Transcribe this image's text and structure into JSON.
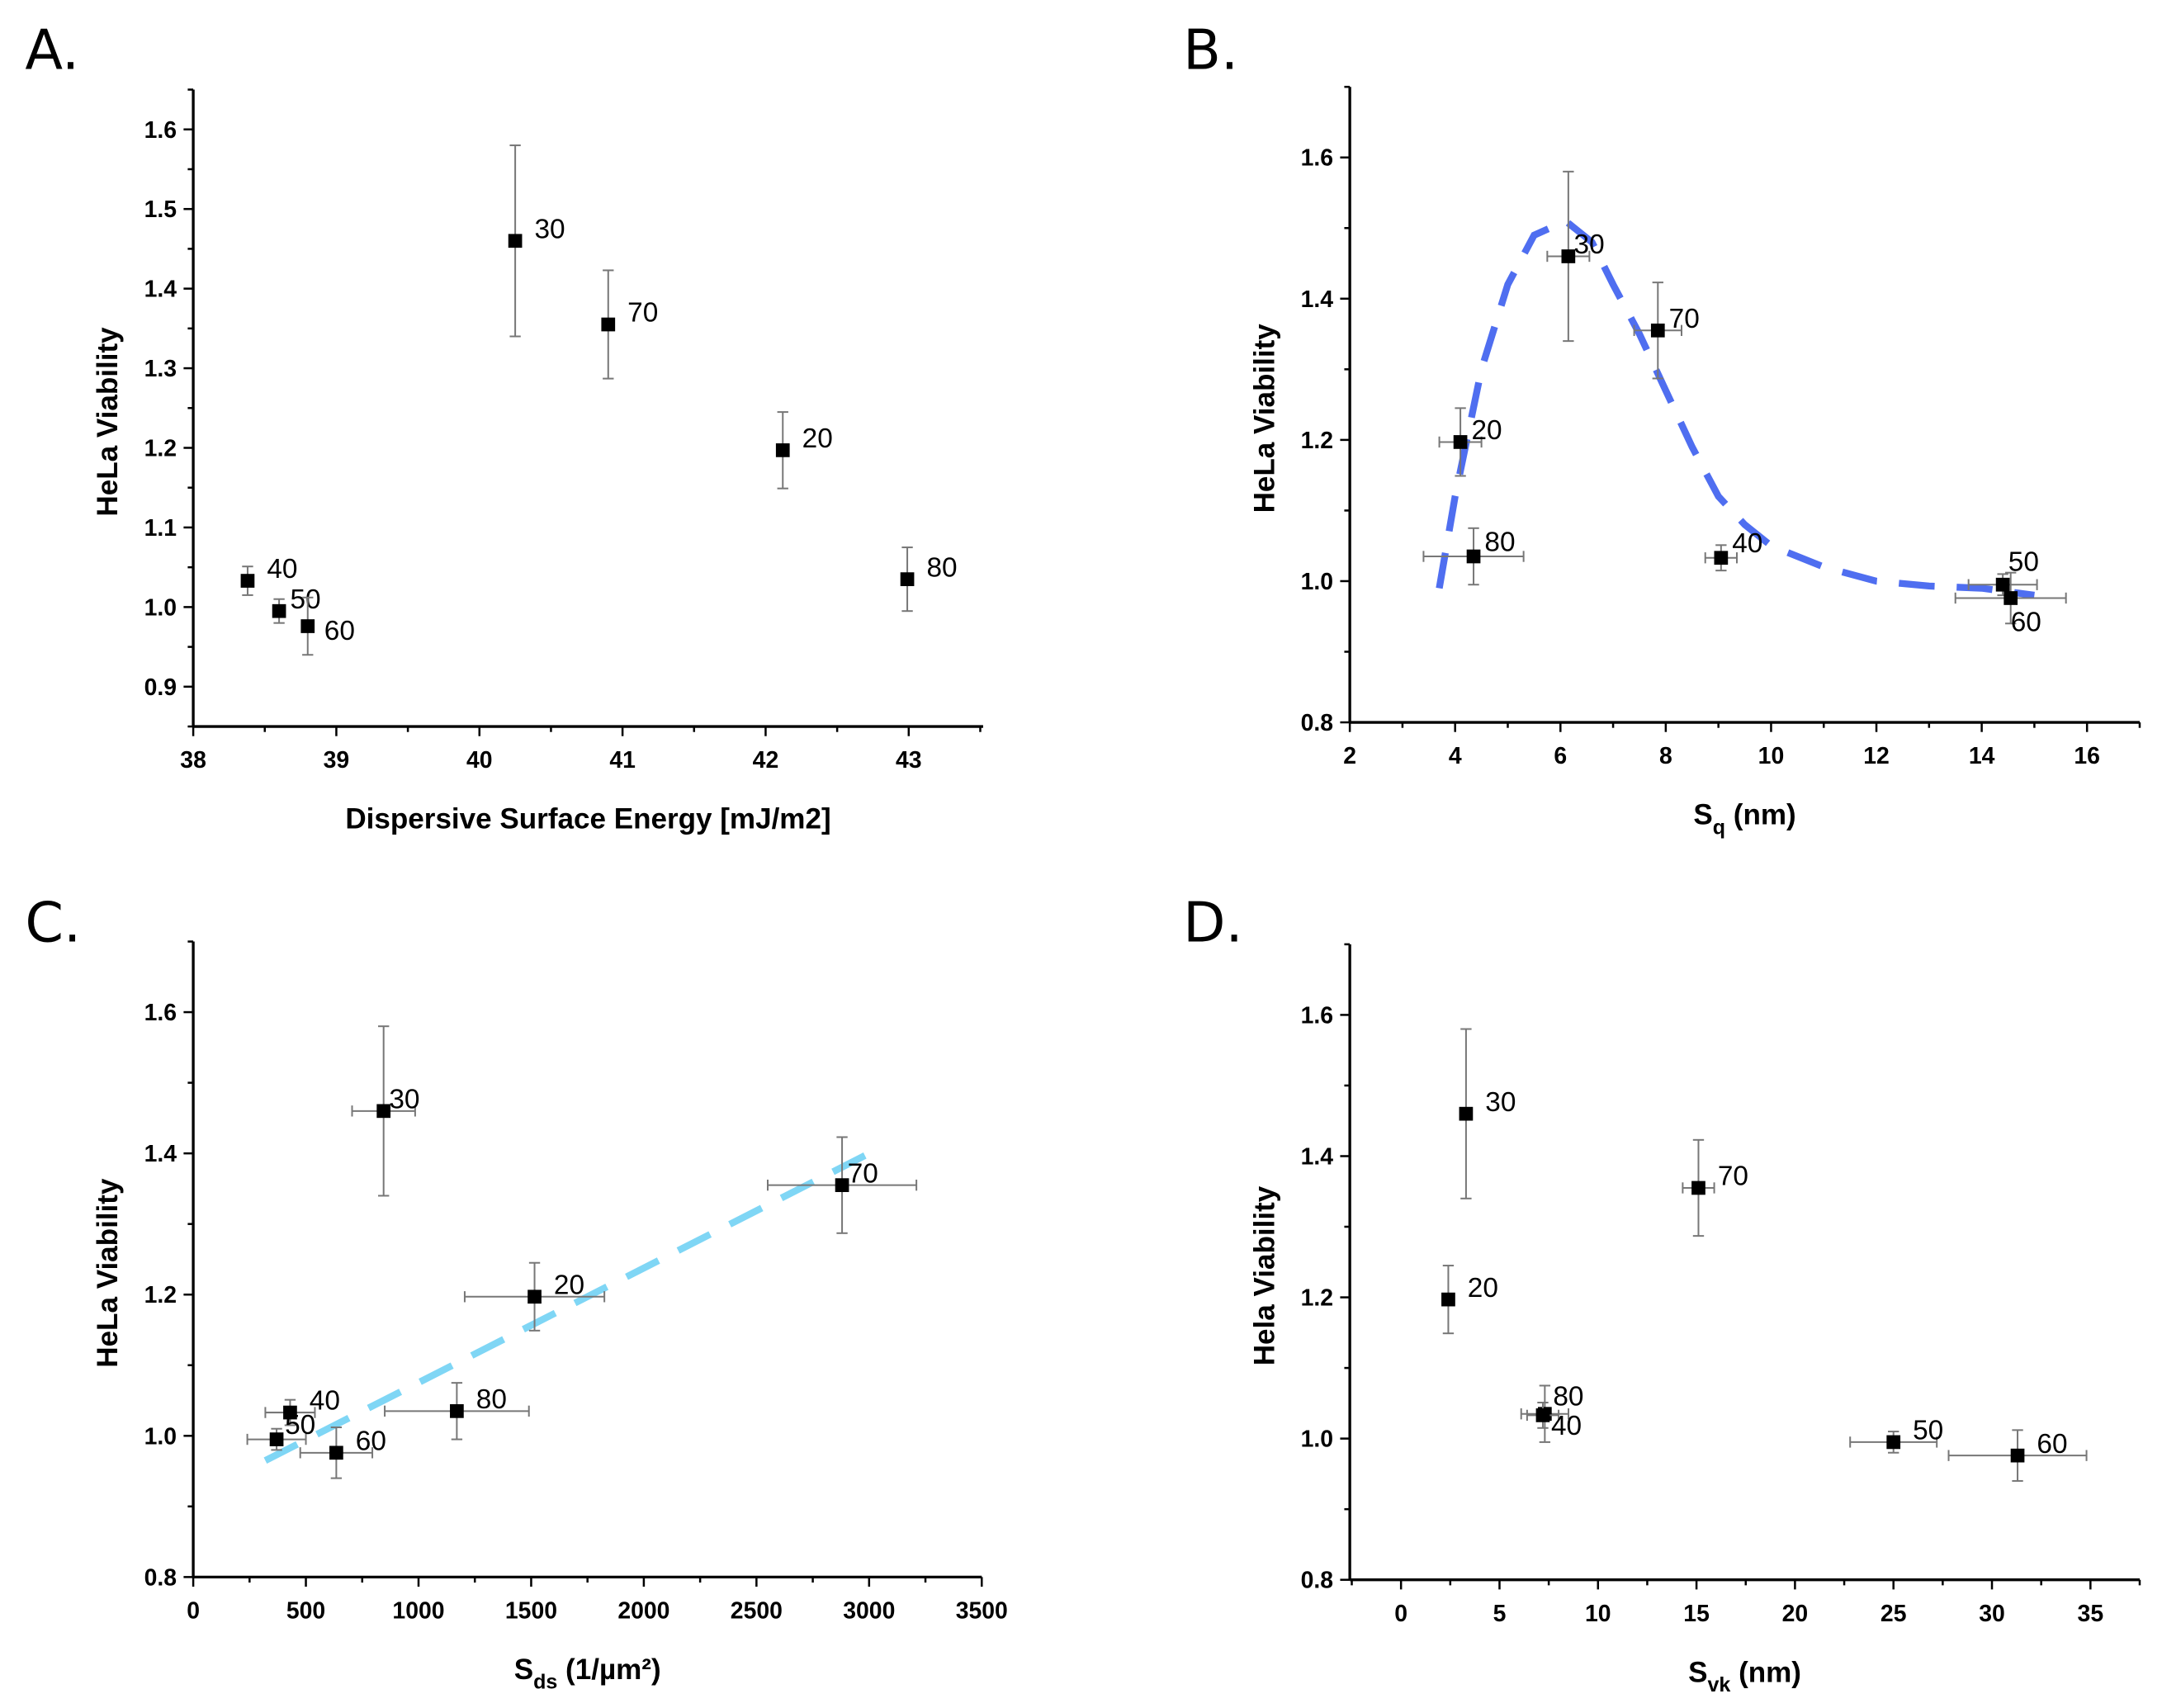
{
  "chart_data": [
    {
      "type": "scatter",
      "panel_label": "A.",
      "xlabel": "Dispersive Surface Energy [mJ/m2]",
      "xlabel_parts": [
        "Dispersive Surface Energy [mJ/m2]",
        "",
        ""
      ],
      "ylabel": "HeLa Viability",
      "xlim": [
        38,
        43.52
      ],
      "ylim": [
        0.85,
        1.65
      ],
      "xticks": [
        38,
        39,
        40,
        41,
        42,
        43
      ],
      "xminor": 0.5,
      "yticks": [
        0.9,
        1.0,
        1.1,
        1.2,
        1.3,
        1.4,
        1.5,
        1.6
      ],
      "yminor": 0.05,
      "ydecimals": 1,
      "points": [
        {
          "label": "40",
          "x": 38.38,
          "y": 1.033,
          "yerr": 0.018,
          "xerr": 0
        },
        {
          "label": "50",
          "x": 38.6,
          "y": 0.995,
          "yerr": 0.015,
          "xerr": 0
        },
        {
          "label": "60",
          "x": 38.8,
          "y": 0.976,
          "yerr": 0.036,
          "xerr": 0
        },
        {
          "label": "30",
          "x": 40.25,
          "y": 1.46,
          "yerr": 0.12,
          "xerr": 0
        },
        {
          "label": "70",
          "x": 40.9,
          "y": 1.355,
          "yerr": 0.068,
          "xerr": 0
        },
        {
          "label": "20",
          "x": 42.12,
          "y": 1.197,
          "yerr": 0.048,
          "xerr": 0
        },
        {
          "label": "80",
          "x": 42.99,
          "y": 1.035,
          "yerr": 0.04,
          "xerr": 0
        }
      ],
      "fit": null
    },
    {
      "type": "scatter",
      "panel_label": "B.",
      "xlabel": "Sq (nm)",
      "xlabel_parts": [
        "S",
        "q",
        " (nm)"
      ],
      "ylabel": "HeLa Viability",
      "xlim": [
        2,
        17
      ],
      "ylim": [
        0.8,
        1.7
      ],
      "xticks": [
        2,
        4,
        6,
        8,
        10,
        12,
        14,
        16
      ],
      "xminor": 1,
      "yticks": [
        0.8,
        1.0,
        1.2,
        1.4,
        1.6
      ],
      "yminor": 0.1,
      "ydecimals": 1,
      "points": [
        {
          "label": "20",
          "x": 4.1,
          "y": 1.197,
          "yerr": 0.048,
          "xerr": 0.4
        },
        {
          "label": "80",
          "x": 4.35,
          "y": 1.035,
          "yerr": 0.04,
          "xerr": 0.95
        },
        {
          "label": "30",
          "x": 6.15,
          "y": 1.46,
          "yerr": 0.12,
          "xerr": 0.4
        },
        {
          "label": "70",
          "x": 7.85,
          "y": 1.355,
          "yerr": 0.068,
          "xerr": 0.45
        },
        {
          "label": "40",
          "x": 9.05,
          "y": 1.033,
          "yerr": 0.018,
          "xerr": 0.3
        },
        {
          "label": "50",
          "x": 14.4,
          "y": 0.995,
          "yerr": 0.015,
          "xerr": 0.65
        },
        {
          "label": "60",
          "x": 14.55,
          "y": 0.976,
          "yerr": 0.036,
          "xerr": 1.05
        }
      ],
      "fit": {
        "color": "#4f6ef0",
        "x": [
          3.7,
          4.0,
          4.5,
          5.0,
          5.5,
          6.1,
          6.6,
          7.0,
          7.5,
          8.0,
          8.5,
          9.0,
          9.5,
          10.0,
          11.0,
          12.0,
          13.0,
          14.0,
          15.0
        ],
        "y": [
          0.99,
          1.12,
          1.3,
          1.42,
          1.49,
          1.51,
          1.48,
          1.42,
          1.35,
          1.27,
          1.19,
          1.12,
          1.08,
          1.05,
          1.02,
          1.0,
          0.993,
          0.99,
          0.98
        ]
      }
    },
    {
      "type": "scatter",
      "panel_label": "C.",
      "xlabel": "Sds (1/µm2)",
      "xlabel_parts": [
        "S",
        "ds",
        " (1/µm²)"
      ],
      "ylabel": "HeLa Viability",
      "xlim": [
        0,
        3500
      ],
      "ylim": [
        0.8,
        1.7
      ],
      "xticks": [
        0,
        500,
        1000,
        1500,
        2000,
        2500,
        3000,
        3500
      ],
      "xminor": 250,
      "yticks": [
        0.8,
        1.0,
        1.2,
        1.4,
        1.6
      ],
      "yminor": 0.1,
      "ydecimals": 1,
      "points": [
        {
          "label": "30",
          "x": 845,
          "y": 1.46,
          "yerr": 0.12,
          "xerr": 140
        },
        {
          "label": "70",
          "x": 2880,
          "y": 1.355,
          "yerr": 0.068,
          "xerr": 330
        },
        {
          "label": "20",
          "x": 1515,
          "y": 1.197,
          "yerr": 0.048,
          "xerr": 310
        },
        {
          "label": "80",
          "x": 1170,
          "y": 1.035,
          "yerr": 0.04,
          "xerr": 320
        },
        {
          "label": "40",
          "x": 430,
          "y": 1.033,
          "yerr": 0.018,
          "xerr": 110
        },
        {
          "label": "50",
          "x": 370,
          "y": 0.995,
          "yerr": 0.015,
          "xerr": 130
        },
        {
          "label": "60",
          "x": 635,
          "y": 0.976,
          "yerr": 0.036,
          "xerr": 160
        }
      ],
      "fit": {
        "color": "#7fd6f5",
        "x": [
          320,
          3000
        ],
        "y": [
          0.965,
          1.4
        ]
      }
    },
    {
      "type": "scatter",
      "panel_label": "D.",
      "xlabel": "Svk (nm)",
      "xlabel_parts": [
        "S",
        "vk",
        " (nm)"
      ],
      "ylabel": "Hela Viability",
      "xlim": [
        -2.6,
        37.5
      ],
      "ylim": [
        0.8,
        1.7
      ],
      "xticks": [
        0,
        5,
        10,
        15,
        20,
        25,
        30,
        35
      ],
      "xminor": 2.5,
      "yticks": [
        0.8,
        1.0,
        1.2,
        1.4,
        1.6
      ],
      "yminor": 0.1,
      "ydecimals": 1,
      "points": [
        {
          "label": "30",
          "x": 3.3,
          "y": 1.46,
          "yerr": 0.12,
          "xerr": 0.3
        },
        {
          "label": "70",
          "x": 15.1,
          "y": 1.355,
          "yerr": 0.068,
          "xerr": 0.8
        },
        {
          "label": "20",
          "x": 2.4,
          "y": 1.197,
          "yerr": 0.048,
          "xerr": 0.3
        },
        {
          "label": "80",
          "x": 7.3,
          "y": 1.035,
          "yerr": 0.04,
          "xerr": 1.2
        },
        {
          "label": "40",
          "x": 7.2,
          "y": 1.033,
          "yerr": 0.018,
          "xerr": 0.8
        },
        {
          "label": "50",
          "x": 25,
          "y": 0.995,
          "yerr": 0.015,
          "xerr": 2.2
        },
        {
          "label": "60",
          "x": 31.3,
          "y": 0.976,
          "yerr": 0.036,
          "xerr": 3.5
        }
      ],
      "fit": null
    }
  ]
}
